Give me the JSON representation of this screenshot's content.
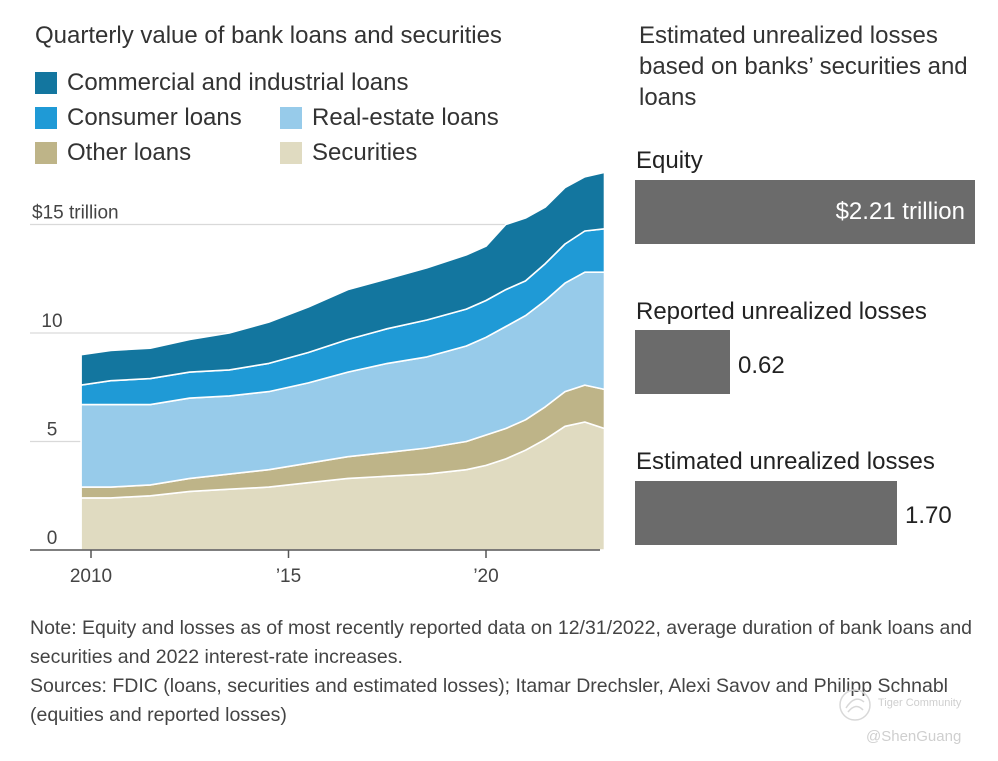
{
  "left_panel": {
    "title": "Quarterly value of bank loans and securities"
  },
  "legend": [
    {
      "label": "Commercial and industrial loans",
      "color": "#13769f"
    },
    {
      "label": "Consumer loans",
      "color": "#1f9ad6"
    },
    {
      "label": "Real-estate loans",
      "color": "#97cbea"
    },
    {
      "label": "Other loans",
      "color": "#beb488"
    },
    {
      "label": "Securities",
      "color": "#e0dbc1"
    }
  ],
  "chart_data": [
    {
      "type": "area",
      "stacked": true,
      "title": "Quarterly value of bank loans and securities",
      "unit": "$ trillion",
      "x": [
        2009.75,
        2010.5,
        2011.5,
        2012.5,
        2013.5,
        2014.5,
        2015.5,
        2016.5,
        2017.5,
        2018.5,
        2019.5,
        2020,
        2020.5,
        2021,
        2021.5,
        2022,
        2022.5,
        2023
      ],
      "x_ticks": [
        {
          "value": 2010,
          "label": "2010"
        },
        {
          "value": 2015,
          "label": "’15"
        },
        {
          "value": 2020,
          "label": "’20"
        }
      ],
      "y_ticks": [
        {
          "value": 0,
          "label": "0"
        },
        {
          "value": 5,
          "label": "5"
        },
        {
          "value": 10,
          "label": "10"
        },
        {
          "value": 15,
          "label": "$15 trillion"
        }
      ],
      "ylim": [
        0,
        17
      ],
      "series": [
        {
          "name": "Securities",
          "values": [
            2.4,
            2.4,
            2.5,
            2.7,
            2.8,
            2.9,
            3.1,
            3.3,
            3.4,
            3.5,
            3.7,
            3.9,
            4.2,
            4.6,
            5.1,
            5.7,
            5.9,
            5.6
          ]
        },
        {
          "name": "Other loans",
          "values": [
            0.5,
            0.5,
            0.5,
            0.6,
            0.7,
            0.8,
            0.9,
            1.0,
            1.1,
            1.2,
            1.3,
            1.4,
            1.4,
            1.4,
            1.5,
            1.6,
            1.7,
            1.8
          ]
        },
        {
          "name": "Real-estate loans",
          "values": [
            3.8,
            3.8,
            3.7,
            3.7,
            3.6,
            3.6,
            3.7,
            3.9,
            4.1,
            4.2,
            4.4,
            4.5,
            4.7,
            4.8,
            4.9,
            5.0,
            5.2,
            5.4
          ]
        },
        {
          "name": "Consumer loans",
          "values": [
            0.9,
            1.1,
            1.2,
            1.2,
            1.2,
            1.3,
            1.4,
            1.5,
            1.6,
            1.7,
            1.7,
            1.7,
            1.7,
            1.6,
            1.7,
            1.8,
            1.9,
            2.0
          ]
        },
        {
          "name": "Commercial and industrial loans",
          "values": [
            1.4,
            1.4,
            1.4,
            1.5,
            1.7,
            1.9,
            2.1,
            2.3,
            2.3,
            2.4,
            2.5,
            2.5,
            3.0,
            2.9,
            2.6,
            2.6,
            2.5,
            2.6
          ]
        }
      ],
      "grid": true
    },
    {
      "type": "bar",
      "orientation": "horizontal",
      "title": "Estimated unrealized losses based on banks’ securities and loans",
      "categories": [
        "Equity",
        "Reported unrealized losses",
        "Estimated unrealized losses"
      ],
      "values": [
        2.21,
        0.62,
        1.7
      ],
      "value_labels": [
        "$2.21 trillion",
        "0.62",
        "1.70"
      ],
      "xlim": [
        0,
        2.21
      ],
      "color": "#6b6b6b"
    }
  ],
  "right_panel": {
    "title": "Estimated unrealized losses based on banks’ securities and loans"
  },
  "note": {
    "line1": "Note: Equity and losses as of most recently reported data on 12/31/2022, average duration of bank loans and securities and 2022 interest-rate increases.",
    "line2": "Sources: FDIC (loans, securities and estimated losses); Itamar Drechsler, Alexi Savov and Philipp Schnabl (equities and reported losses)"
  },
  "watermark": {
    "brand": "Tiger Community",
    "handle": "@ShenGuang"
  }
}
